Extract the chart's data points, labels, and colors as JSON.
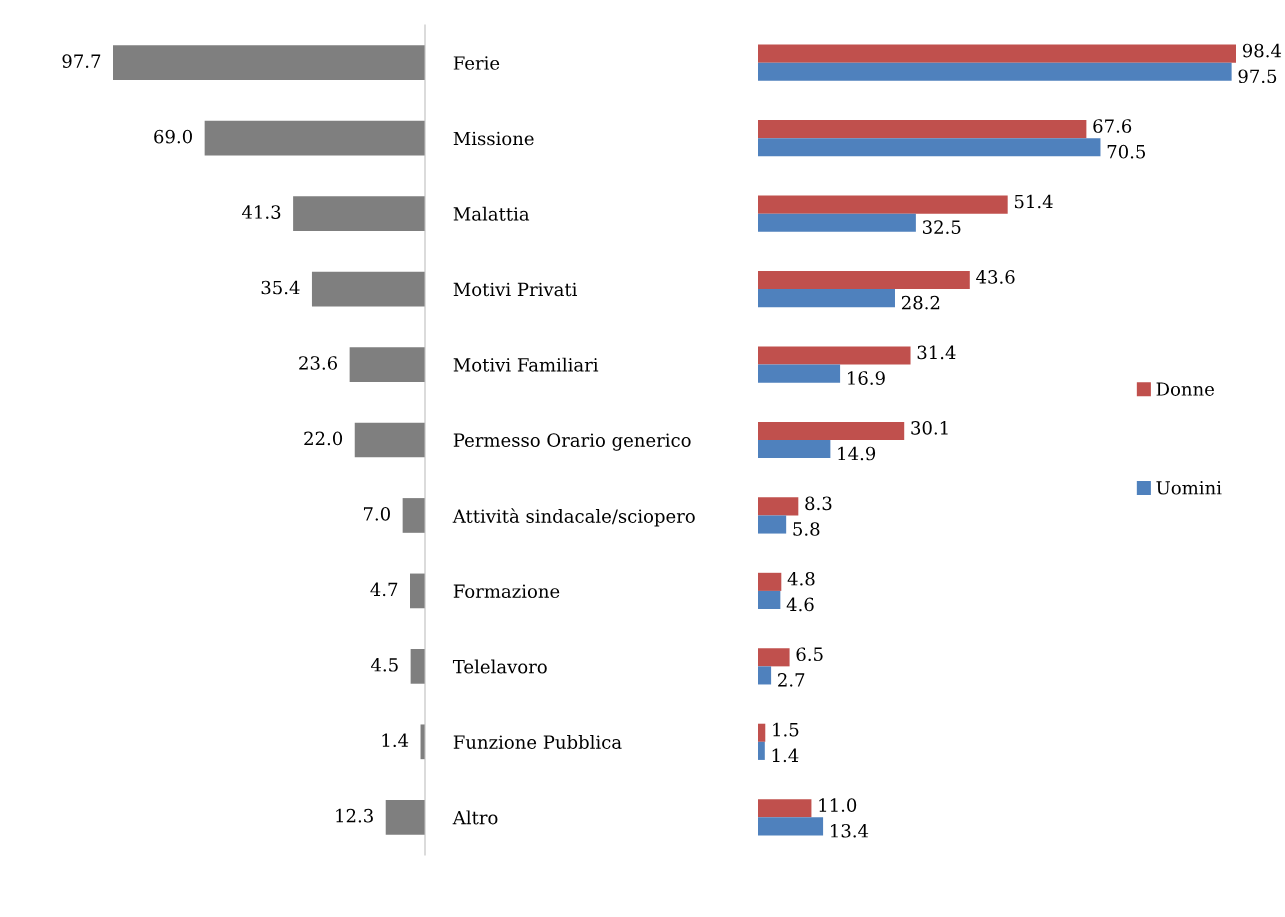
{
  "chart_data": [
    {
      "type": "bar",
      "orientation": "horizontal",
      "categories": [
        "Ferie",
        "Missione",
        "Malattia",
        "Motivi Privati",
        "Motivi Familiari",
        "Permesso Orario generico",
        "Attività sindacale/sciopero",
        "Formazione",
        "Telelavoro",
        "Funzione Pubblica",
        "Altro"
      ],
      "series": [
        {
          "color": "#7f7f7f",
          "values": [
            97.7,
            69.0,
            41.3,
            35.4,
            23.6,
            22.0,
            7.0,
            4.7,
            4.5,
            1.4,
            12.3
          ],
          "value_labels": [
            "97.7",
            "69.0",
            "41.3",
            "35.4",
            "23.6",
            "22.0",
            "7.0",
            "4.7",
            "4.5",
            "1.4",
            "12.3"
          ]
        }
      ],
      "tick_labels": "y"
    },
    {
      "type": "bar",
      "orientation": "horizontal",
      "categories": [
        null,
        null,
        null,
        null,
        null,
        null,
        null,
        null,
        null,
        null,
        null
      ],
      "series": [
        {
          "name": "Donne",
          "color": "#c0504d",
          "values": [
            98.4,
            67.6,
            51.4,
            43.6,
            31.4,
            30.1,
            8.3,
            4.8,
            6.5,
            1.5,
            11.0
          ],
          "value_labels": [
            "98.4",
            "67.6",
            "51.4",
            "43.6",
            "31.4",
            "30.1",
            "8.3",
            "4.8",
            "6.5",
            "1.5",
            "11.0"
          ]
        },
        {
          "name": "Uomini",
          "color": "#4f81bd",
          "values": [
            97.5,
            70.5,
            32.5,
            28.2,
            16.9,
            14.9,
            5.8,
            4.6,
            2.7,
            1.4,
            13.4
          ],
          "value_labels": [
            "97.5",
            "70.5",
            "32.5",
            "28.2",
            "16.9",
            "14.9",
            "5.8",
            "4.6",
            "2.7",
            "1.4",
            "13.4"
          ]
        }
      ],
      "tick_labels": false,
      "legend": "right"
    }
  ]
}
